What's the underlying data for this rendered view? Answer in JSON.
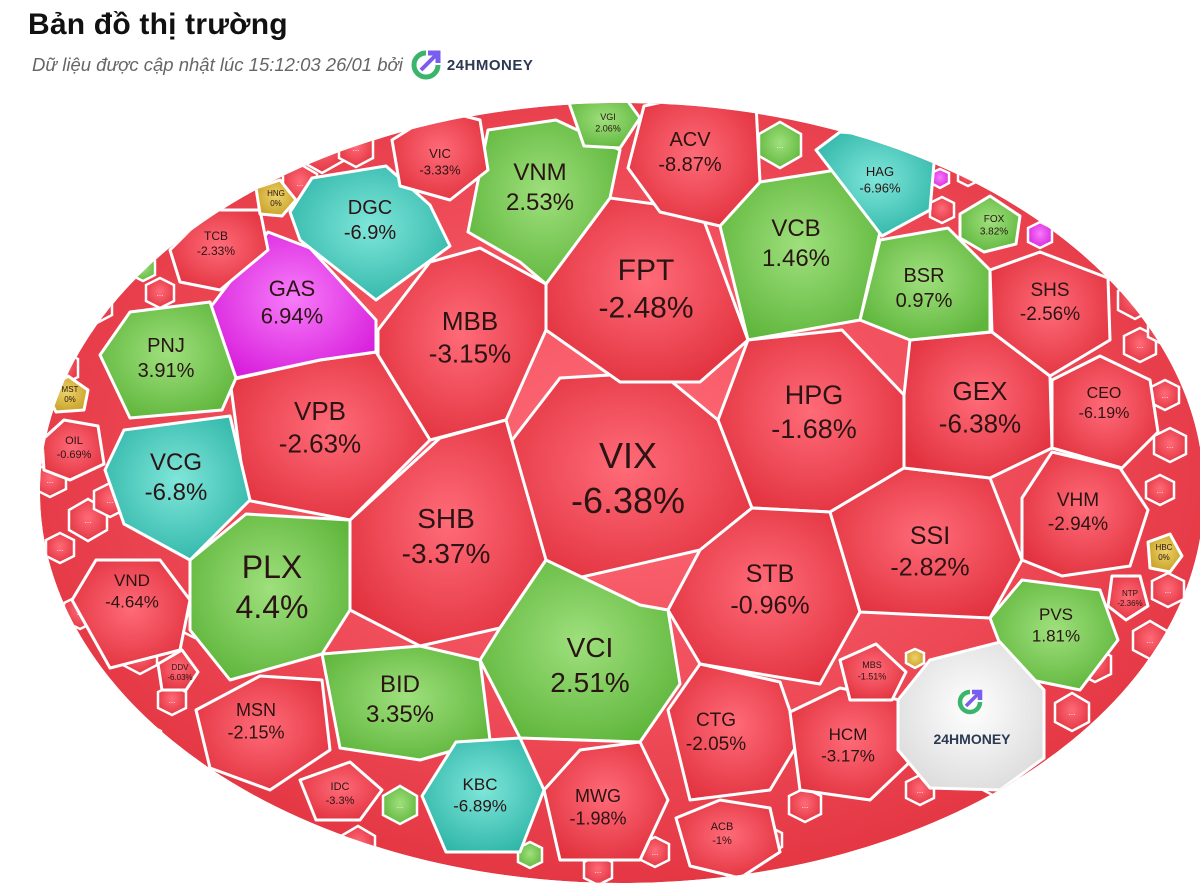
{
  "header": {
    "title": "Bản đồ thị trường",
    "subtitle": "Dữ liệu được cập nhật lúc 15:12:03 26/01 bởi",
    "brand_name": "24HMONEY"
  },
  "colors": {
    "down": "#e8404f",
    "up": "#78c955",
    "floor": "#40cbbd",
    "ceiling": "#e535e8",
    "ref": "#d5b33a",
    "brand_blue": "#7a5cf0",
    "brand_green": "#3bb56b"
  },
  "watermark": {
    "text": "24HMONEY"
  },
  "chart_data": {
    "type": "treemap",
    "title": "Bản đồ thị trường",
    "items": [
      {
        "ticker": "VIX",
        "change": "-6.38%",
        "value": -6.38,
        "status": "down"
      },
      {
        "ticker": "FPT",
        "change": "-2.48%",
        "value": -2.48,
        "status": "down"
      },
      {
        "ticker": "MBB",
        "change": "-3.15%",
        "value": -3.15,
        "status": "down"
      },
      {
        "ticker": "SHB",
        "change": "-3.37%",
        "value": -3.37,
        "status": "down"
      },
      {
        "ticker": "VPB",
        "change": "-2.63%",
        "value": -2.63,
        "status": "down"
      },
      {
        "ticker": "HPG",
        "change": "-1.68%",
        "value": -1.68,
        "status": "down"
      },
      {
        "ticker": "STB",
        "change": "-0.96%",
        "value": -0.96,
        "status": "down"
      },
      {
        "ticker": "SSI",
        "change": "-2.82%",
        "value": -2.82,
        "status": "down"
      },
      {
        "ticker": "GEX",
        "change": "-6.38%",
        "value": -6.38,
        "status": "down"
      },
      {
        "ticker": "VCI",
        "change": "2.51%",
        "value": 2.51,
        "status": "up"
      },
      {
        "ticker": "PLX",
        "change": "4.4%",
        "value": 4.4,
        "status": "up"
      },
      {
        "ticker": "BID",
        "change": "3.35%",
        "value": 3.35,
        "status": "up"
      },
      {
        "ticker": "VCB",
        "change": "1.46%",
        "value": 1.46,
        "status": "up"
      },
      {
        "ticker": "VNM",
        "change": "2.53%",
        "value": 2.53,
        "status": "up"
      },
      {
        "ticker": "GAS",
        "change": "6.94%",
        "value": 6.94,
        "status": "ceiling"
      },
      {
        "ticker": "DGC",
        "change": "-6.9%",
        "value": -6.9,
        "status": "floor"
      },
      {
        "ticker": "VCG",
        "change": "-6.8%",
        "value": -6.8,
        "status": "floor"
      },
      {
        "ticker": "KBC",
        "change": "-6.89%",
        "value": -6.89,
        "status": "floor"
      },
      {
        "ticker": "HAG",
        "change": "-6.96%",
        "value": -6.96,
        "status": "floor"
      },
      {
        "ticker": "PNJ",
        "change": "3.91%",
        "value": 3.91,
        "status": "up"
      },
      {
        "ticker": "BSR",
        "change": "0.97%",
        "value": 0.97,
        "status": "up"
      },
      {
        "ticker": "PVS",
        "change": "1.81%",
        "value": 1.81,
        "status": "up"
      },
      {
        "ticker": "ACV",
        "change": "-8.87%",
        "value": -8.87,
        "status": "down"
      },
      {
        "ticker": "SHS",
        "change": "-2.56%",
        "value": -2.56,
        "status": "down"
      },
      {
        "ticker": "CEO",
        "change": "-6.19%",
        "value": -6.19,
        "status": "down"
      },
      {
        "ticker": "VHM",
        "change": "-2.94%",
        "value": -2.94,
        "status": "down"
      },
      {
        "ticker": "CTG",
        "change": "-2.05%",
        "value": -2.05,
        "status": "down"
      },
      {
        "ticker": "HCM",
        "change": "-3.17%",
        "value": -3.17,
        "status": "down"
      },
      {
        "ticker": "MWG",
        "change": "-1.98%",
        "value": -1.98,
        "status": "down"
      },
      {
        "ticker": "MSN",
        "change": "-2.15%",
        "value": -2.15,
        "status": "down"
      },
      {
        "ticker": "VND",
        "change": "-4.64%",
        "value": -4.64,
        "status": "down"
      },
      {
        "ticker": "VIC",
        "change": "-3.33%",
        "value": -3.33,
        "status": "down"
      },
      {
        "ticker": "TCB",
        "change": "-2.33%",
        "value": -2.33,
        "status": "down"
      },
      {
        "ticker": "IDC",
        "change": "-3.3%",
        "value": -3.3,
        "status": "down"
      },
      {
        "ticker": "ACB",
        "change": "-1%",
        "value": -1.0,
        "status": "down"
      },
      {
        "ticker": "MBS",
        "change": "-1.51%",
        "value": -1.51,
        "status": "down"
      },
      {
        "ticker": "OIL",
        "change": "-0.69%",
        "value": -0.69,
        "status": "down"
      },
      {
        "ticker": "DDV",
        "change": "-6.03%",
        "value": -6.03,
        "status": "down"
      },
      {
        "ticker": "NTP",
        "change": "-2.36%",
        "value": -2.36,
        "status": "down"
      },
      {
        "ticker": "VGI",
        "change": "2.06%",
        "value": 2.06,
        "status": "up"
      },
      {
        "ticker": "FOX",
        "change": "3.82%",
        "value": 3.82,
        "status": "up"
      },
      {
        "ticker": "HNG",
        "change": "0%",
        "value": 0,
        "status": "ref"
      },
      {
        "ticker": "MST",
        "change": "0%",
        "value": 0,
        "status": "ref"
      },
      {
        "ticker": "HBC",
        "change": "0%",
        "value": 0,
        "status": "ref"
      }
    ],
    "more_label": "..."
  }
}
